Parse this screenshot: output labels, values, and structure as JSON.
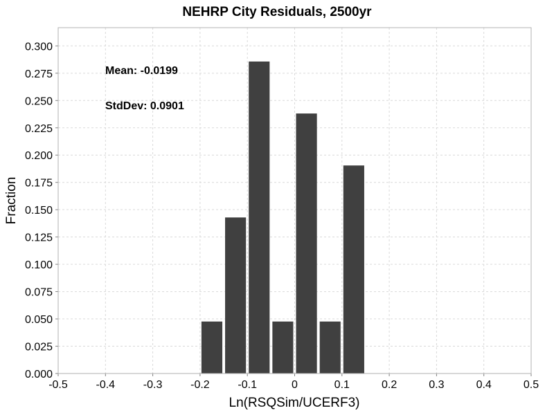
{
  "chart_data": {
    "type": "bar",
    "title": "NEHRP City Residuals, 2500yr",
    "xlabel": "Ln(RSQSim/UCERF3)",
    "ylabel": "Fraction",
    "xlim": [
      -0.5,
      0.5
    ],
    "ylim": [
      0.0,
      0.3167
    ],
    "x_ticks": [
      "-0.5",
      "-0.4",
      "-0.3",
      "-0.2",
      "-0.1",
      "0",
      "0.1",
      "0.2",
      "0.3",
      "0.4",
      "0.5"
    ],
    "y_ticks": [
      "0.000",
      "0.025",
      "0.050",
      "0.075",
      "0.100",
      "0.125",
      "0.150",
      "0.175",
      "0.200",
      "0.225",
      "0.250",
      "0.275",
      "0.300"
    ],
    "bin_width": 0.05,
    "bins": [
      {
        "center": -0.175,
        "value": 0.0476
      },
      {
        "center": -0.125,
        "value": 0.1429
      },
      {
        "center": -0.075,
        "value": 0.2857
      },
      {
        "center": -0.025,
        "value": 0.0476
      },
      {
        "center": 0.025,
        "value": 0.2381
      },
      {
        "center": 0.075,
        "value": 0.0476
      },
      {
        "center": 0.125,
        "value": 0.1905
      }
    ],
    "annotations": [
      "Mean: -0.0199",
      "StdDev: 0.0901"
    ],
    "grid": true,
    "colors": {
      "bar": "#404040",
      "grid": "#d9d9d9",
      "frame": "#b0b0b0"
    }
  }
}
